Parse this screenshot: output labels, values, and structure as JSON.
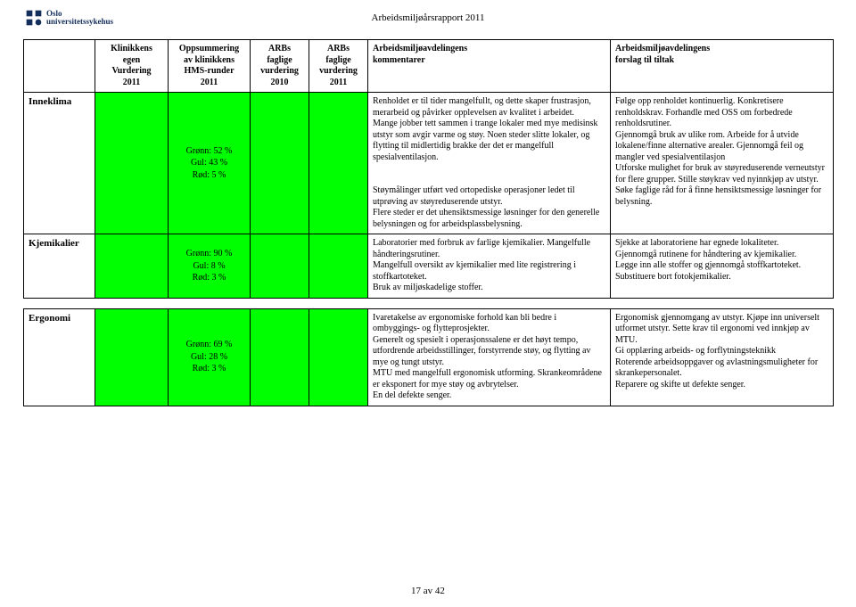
{
  "header": {
    "org_line1": "Oslo",
    "org_line2": "universitetssykehus",
    "doc_title": "Arbeidsmiljøårsrapport 2011"
  },
  "columns": {
    "c0": "",
    "c1": "Klinikkens\negen\nVurdering\n2011",
    "c2": "Oppsummering\nav klinikkens\nHMS-runder\n2011",
    "c3": "ARBs\nfaglige\nvurdering\n2010",
    "c4": "ARBs\nfaglige\nvurdering\n2011",
    "c5": "Arbeidsmiljøavdelingens\nkommentarer",
    "c6": "Arbeidsmiljøavdelingens\nforslag til tiltak"
  },
  "rows": [
    {
      "label": "Inneklima",
      "hms": "Grønn: 52 %\nGul: 43 %\nRød: 5 %",
      "comment": "Renholdet er til tider mangelfullt, og dette skaper frustrasjon, merarbeid og påvirker opplevelsen av kvalitet i arbeidet.\nMange jobber tett sammen i trange lokaler med mye medisinsk utstyr som avgir varme og støy. Noen steder slitte lokaler, og flytting til midlertidig brakke der det er mangelfull spesialventilasjon.\n\nStøymålinger utført ved ortopediske operasjoner ledet til utprøving av støyreduserende utstyr.\nFlere steder er det uhensiktsmessige løsninger for den generelle belysningen og for arbeidsplassbelysning.",
      "action": "Følge opp renholdet kontinuerlig. Konkretisere renholdskrav. Forhandle med OSS om forbedrede renholdsrutiner.\nGjennomgå bruk av ulike rom. Arbeide for å utvide lokalene/finne alternative arealer. Gjennomgå feil og mangler ved spesialventilasjon\nUtforske mulighet for bruk av støyreduserende verneutstyr for flere grupper. Stille støykrav ved nyinnkjøp av utstyr.\nSøke faglige råd for å finne hensiktsmessige løsninger for belysning."
    },
    {
      "label": "Kjemikalier",
      "hms": "Grønn: 90 %\nGul: 8 %\nRød: 3 %",
      "comment": "Laboratorier med forbruk av farlige kjemikalier. Mangelfulle håndteringsrutiner.\nMangelfull oversikt av kjemikalier med lite registrering i stoffkartoteket.\nBruk av miljøskadelige stoffer.",
      "action": "Sjekke at laboratoriene har egnede lokaliteter.\nGjennomgå rutinene for håndtering av kjemikalier.\nLegge inn alle stoffer og gjennomgå stoffkartoteket.\nSubstituere bort fotokjemikalier."
    },
    {
      "label": "Ergonomi",
      "hms": "Grønn: 69 %\nGul: 28 %\nRød: 3 %",
      "comment": "Ivaretakelse av ergonomiske forhold kan bli bedre i ombyggings- og flytteprosjekter.\nGenerelt og spesielt i operasjonssalene er det høyt tempo, utfordrende arbeidsstillinger, forstyrrende støy, og flytting av mye og tungt utstyr.\nMTU med mangelfull ergonomisk utforming. Skrankeområdene er eksponert for mye støy og avbrytelser.\nEn del defekte senger.",
      "action": "Ergonomisk gjennomgang av utstyr. Kjøpe inn universelt utformet utstyr. Sette krav til ergonomi ved innkjøp av MTU.\nGi opplæring arbeids- og forflytningsteknikk\nRoterende arbeidsoppgaver og avlastningsmuligheter for skrankepersonalet.\nReparere og skifte ut defekte senger."
    }
  ],
  "colors": {
    "green": "#00ff00",
    "logo": "#132e5a"
  },
  "page_footer": "17 av 42"
}
